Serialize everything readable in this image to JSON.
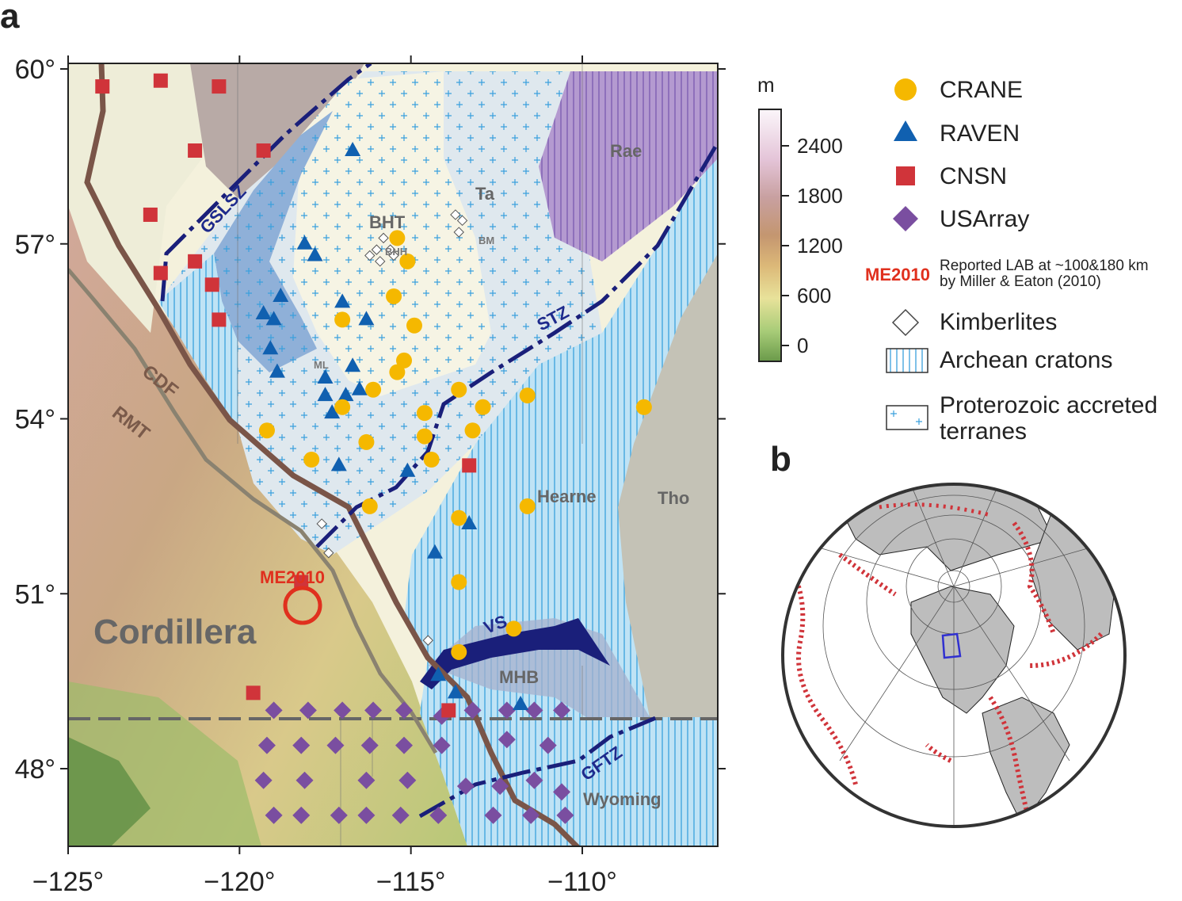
{
  "panels": {
    "a": "a",
    "b": "b"
  },
  "axes": {
    "lat_ticks": [
      "60°",
      "57°",
      "54°",
      "51°",
      "48°"
    ],
    "lon_ticks": [
      "−125°",
      "−120°",
      "−115°",
      "−110°"
    ]
  },
  "colorbar": {
    "unit": "m",
    "ticks": [
      "2400",
      "1800",
      "1200",
      "600",
      "0"
    ]
  },
  "legend": {
    "crane": "CRANE",
    "raven": "RAVEN",
    "cnsn": "CNSN",
    "usarray": "USArray",
    "me_key": "ME2010",
    "me_desc_1": "Reported LAB at ~100&180 km",
    "me_desc_2": "by Miller & Eaton (2010)",
    "kimberlites": "Kimberlites",
    "archean": "Archean cratons",
    "proterozoic_1": "Proterozoic accreted",
    "proterozoic_2": "terranes"
  },
  "map_labels": {
    "rae": "Rae",
    "ta": "Ta",
    "bht": "BHT",
    "bhh": "BHH",
    "bm": "BM",
    "ml": "ML",
    "hearne": "Hearne",
    "tho": "Tho",
    "mhb": "MHB",
    "wyoming": "Wyoming",
    "cordillera": "Cordillera",
    "me2010": "ME2010",
    "gslsz": "GSLSZ",
    "stz": "STZ",
    "vs": "VS",
    "gftz": "GFTZ",
    "cdf": "CDF",
    "rmt": "RMT"
  },
  "colors": {
    "crane": "#f5b800",
    "raven": "#1060b0",
    "cnsn": "#d0343a",
    "usarray": "#7a4ea0",
    "me2010": "#e0301e",
    "fault": "#7a5548",
    "shear_zone": "#1a1f7a"
  },
  "stations": {
    "crane": [
      [
        -115.4,
        57.1
      ],
      [
        -115.1,
        56.7
      ],
      [
        -115.5,
        56.1
      ],
      [
        -114.9,
        55.6
      ],
      [
        -117.0,
        55.7
      ],
      [
        -115.4,
        54.8
      ],
      [
        -116.1,
        54.5
      ],
      [
        -117.0,
        54.2
      ],
      [
        -114.6,
        54.1
      ],
      [
        -112.9,
        54.2
      ],
      [
        -113.6,
        54.5
      ],
      [
        -113.2,
        53.8
      ],
      [
        -114.6,
        53.7
      ],
      [
        -116.3,
        53.6
      ],
      [
        -117.9,
        53.3
      ],
      [
        -119.2,
        53.8
      ],
      [
        -116.2,
        52.5
      ],
      [
        -114.4,
        53.3
      ],
      [
        -113.6,
        52.3
      ],
      [
        -111.6,
        52.5
      ],
      [
        -113.6,
        51.2
      ],
      [
        -112.0,
        50.4
      ],
      [
        -113.6,
        50.0
      ],
      [
        -111.6,
        54.4
      ],
      [
        -108.2,
        54.2
      ],
      [
        -115.2,
        55.0
      ]
    ],
    "raven": [
      [
        -116.7,
        58.6
      ],
      [
        -118.1,
        57.0
      ],
      [
        -117.8,
        56.8
      ],
      [
        -119.3,
        55.8
      ],
      [
        -119.0,
        55.7
      ],
      [
        -118.8,
        56.1
      ],
      [
        -117.0,
        56.0
      ],
      [
        -116.3,
        55.7
      ],
      [
        -119.1,
        55.2
      ],
      [
        -118.9,
        54.8
      ],
      [
        -117.5,
        54.7
      ],
      [
        -116.7,
        54.9
      ],
      [
        -117.5,
        54.4
      ],
      [
        -117.3,
        54.1
      ],
      [
        -116.9,
        54.4
      ],
      [
        -116.5,
        54.5
      ],
      [
        -117.1,
        53.2
      ],
      [
        -115.1,
        53.1
      ],
      [
        -113.3,
        52.2
      ],
      [
        -114.3,
        51.7
      ],
      [
        -114.2,
        49.6
      ],
      [
        -113.7,
        49.3
      ],
      [
        -111.8,
        49.1
      ]
    ],
    "cnsn": [
      [
        -124.0,
        59.7
      ],
      [
        -122.3,
        59.8
      ],
      [
        -120.6,
        59.7
      ],
      [
        -121.3,
        58.6
      ],
      [
        -119.3,
        58.6
      ],
      [
        -122.6,
        57.5
      ],
      [
        -122.3,
        56.5
      ],
      [
        -121.3,
        56.7
      ],
      [
        -120.8,
        56.3
      ],
      [
        -120.6,
        55.7
      ],
      [
        -113.3,
        53.2
      ],
      [
        -119.6,
        49.3
      ],
      [
        -113.9,
        49.0
      ],
      [
        -118.2,
        51.2
      ]
    ],
    "usarray": [
      [
        -119.0,
        49.0
      ],
      [
        -118.0,
        49.0
      ],
      [
        -117.0,
        49.0
      ],
      [
        -116.1,
        49.0
      ],
      [
        -115.2,
        49.0
      ],
      [
        -114.1,
        48.9
      ],
      [
        -113.2,
        49.0
      ],
      [
        -112.2,
        49.0
      ],
      [
        -111.4,
        49.0
      ],
      [
        -110.6,
        49.0
      ],
      [
        -119.2,
        48.4
      ],
      [
        -118.2,
        48.4
      ],
      [
        -117.2,
        48.4
      ],
      [
        -116.2,
        48.4
      ],
      [
        -115.2,
        48.4
      ],
      [
        -114.1,
        48.4
      ],
      [
        -112.2,
        48.5
      ],
      [
        -111.0,
        48.4
      ],
      [
        -119.3,
        47.8
      ],
      [
        -118.1,
        47.8
      ],
      [
        -116.3,
        47.8
      ],
      [
        -115.1,
        47.8
      ],
      [
        -113.4,
        47.7
      ],
      [
        -112.4,
        47.7
      ],
      [
        -111.4,
        47.8
      ],
      [
        -110.6,
        47.6
      ],
      [
        -119.0,
        47.2
      ],
      [
        -118.2,
        47.2
      ],
      [
        -117.1,
        47.2
      ],
      [
        -116.3,
        47.2
      ],
      [
        -115.3,
        47.2
      ],
      [
        -114.2,
        47.2
      ],
      [
        -112.6,
        47.2
      ],
      [
        -111.5,
        47.2
      ],
      [
        -110.5,
        47.2
      ]
    ],
    "kimberlites": [
      [
        -115.8,
        57.1
      ],
      [
        -116.0,
        56.9
      ],
      [
        -115.9,
        56.7
      ],
      [
        -115.6,
        56.9
      ],
      [
        -115.5,
        56.8
      ],
      [
        -116.2,
        56.8
      ],
      [
        -113.7,
        57.5
      ],
      [
        -113.5,
        57.4
      ],
      [
        -113.6,
        57.2
      ],
      [
        -117.6,
        52.2
      ],
      [
        -117.4,
        51.7
      ],
      [
        -114.5,
        50.2
      ],
      [
        -111.4,
        49.0
      ]
    ]
  }
}
